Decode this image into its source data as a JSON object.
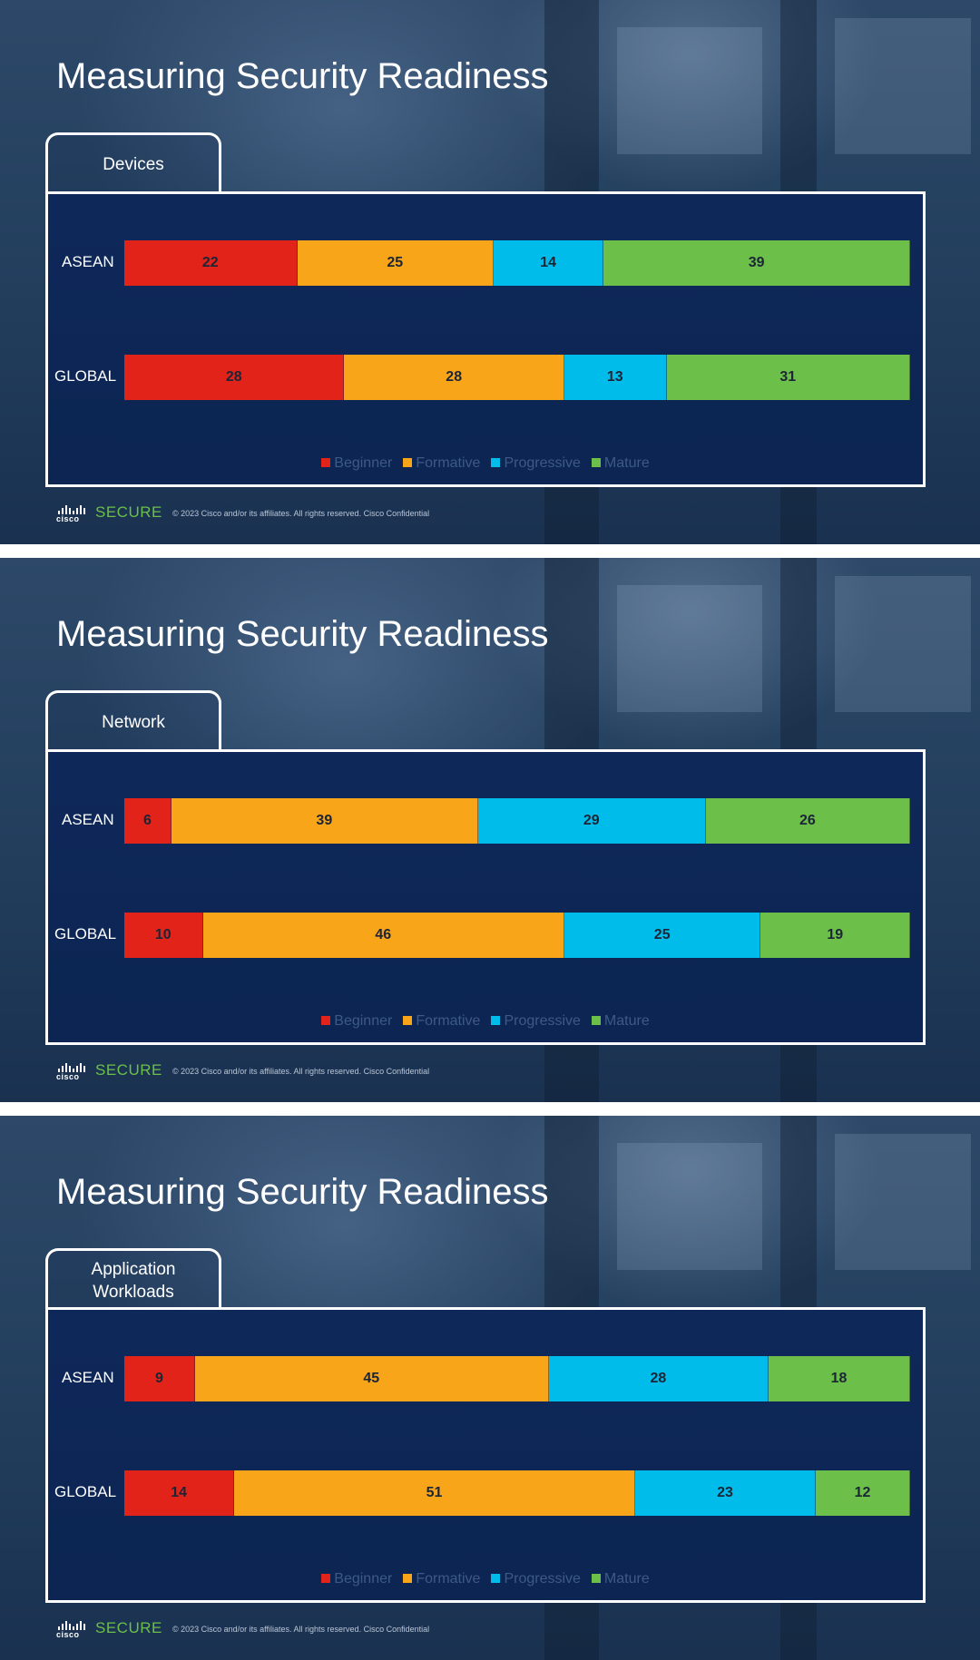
{
  "slides": [
    {
      "title": "Measuring Security Readiness",
      "tab": "Devices",
      "footer_brand": "SECURE",
      "footer_logo": "cisco",
      "footer_copyright": "© 2023 Cisco and/or its affiliates. All rights reserved. Cisco Confidential"
    },
    {
      "title": "Measuring Security Readiness",
      "tab": "Network",
      "footer_brand": "SECURE",
      "footer_logo": "cisco",
      "footer_copyright": "© 2023 Cisco and/or its affiliates. All rights reserved. Cisco Confidential"
    },
    {
      "title": "Measuring Security Readiness",
      "tab": "Application Workloads",
      "footer_brand": "SECURE",
      "footer_logo": "cisco",
      "footer_copyright": "© 2023 Cisco and/or its affiliates. All rights reserved. Cisco Confidential"
    }
  ],
  "legend_colors": {
    "Beginner": "#e2231a",
    "Formative": "#f9a51a",
    "Progressive": "#00bceb",
    "Mature": "#6cc04a"
  },
  "chart_data": [
    {
      "type": "bar",
      "stacked": true,
      "orientation": "horizontal",
      "title": "Devices",
      "categories": [
        "ASEAN",
        "GLOBAL"
      ],
      "series": [
        {
          "name": "Beginner",
          "values": [
            22,
            28
          ]
        },
        {
          "name": "Formative",
          "values": [
            25,
            28
          ]
        },
        {
          "name": "Progressive",
          "values": [
            14,
            13
          ]
        },
        {
          "name": "Mature",
          "values": [
            39,
            31
          ]
        }
      ],
      "legend": "bottom"
    },
    {
      "type": "bar",
      "stacked": true,
      "orientation": "horizontal",
      "title": "Network",
      "categories": [
        "ASEAN",
        "GLOBAL"
      ],
      "series": [
        {
          "name": "Beginner",
          "values": [
            6,
            10
          ]
        },
        {
          "name": "Formative",
          "values": [
            39,
            46
          ]
        },
        {
          "name": "Progressive",
          "values": [
            29,
            25
          ]
        },
        {
          "name": "Mature",
          "values": [
            26,
            19
          ]
        }
      ],
      "legend": "bottom"
    },
    {
      "type": "bar",
      "stacked": true,
      "orientation": "horizontal",
      "title": "Application Workloads",
      "categories": [
        "ASEAN",
        "GLOBAL"
      ],
      "series": [
        {
          "name": "Beginner",
          "values": [
            9,
            14
          ]
        },
        {
          "name": "Formative",
          "values": [
            45,
            51
          ]
        },
        {
          "name": "Progressive",
          "values": [
            28,
            23
          ]
        },
        {
          "name": "Mature",
          "values": [
            18,
            12
          ]
        }
      ],
      "legend": "bottom"
    }
  ]
}
